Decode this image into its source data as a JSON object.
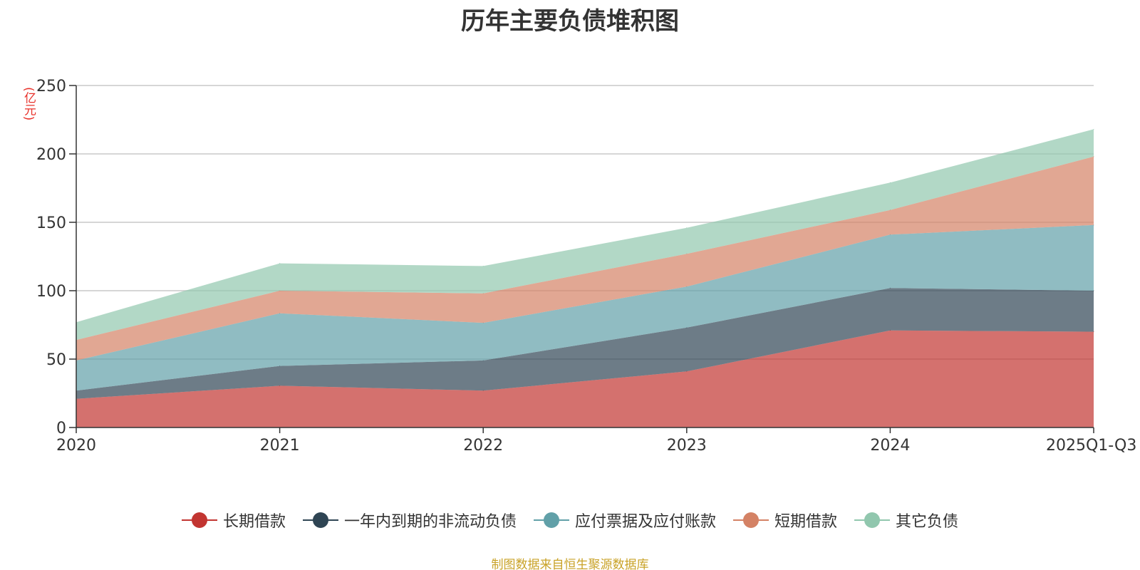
{
  "chart_data": {
    "type": "area",
    "stacked": true,
    "title": "历年主要负债堆积图",
    "unit_label": "(亿元)",
    "categories": [
      "2020",
      "2021",
      "2022",
      "2023",
      "2024",
      "2025Q1-Q3"
    ],
    "ylim": [
      0,
      250
    ],
    "yticks": [
      0,
      50,
      100,
      150,
      200,
      250
    ],
    "grid": true,
    "legend_position": "bottom",
    "series": [
      {
        "name": "长期借款",
        "color": "#c23531",
        "values": [
          21,
          30.5,
          27,
          41,
          71,
          70
        ]
      },
      {
        "name": "一年内到期的非流动负债",
        "color": "#2f4554",
        "values": [
          6,
          14.5,
          22,
          32,
          31,
          30
        ]
      },
      {
        "name": "应付票据及应付账款",
        "color": "#61a0a8",
        "values": [
          22,
          38.5,
          27.5,
          30,
          39,
          48
        ]
      },
      {
        "name": "短期借款",
        "color": "#d48265",
        "values": [
          15,
          16.5,
          21.5,
          24,
          18,
          50
        ]
      },
      {
        "name": "其它负债",
        "color": "#91c7ae",
        "values": [
          13,
          20,
          20,
          19,
          20,
          20
        ]
      }
    ]
  },
  "source_note": "制图数据来自恒生聚源数据库"
}
